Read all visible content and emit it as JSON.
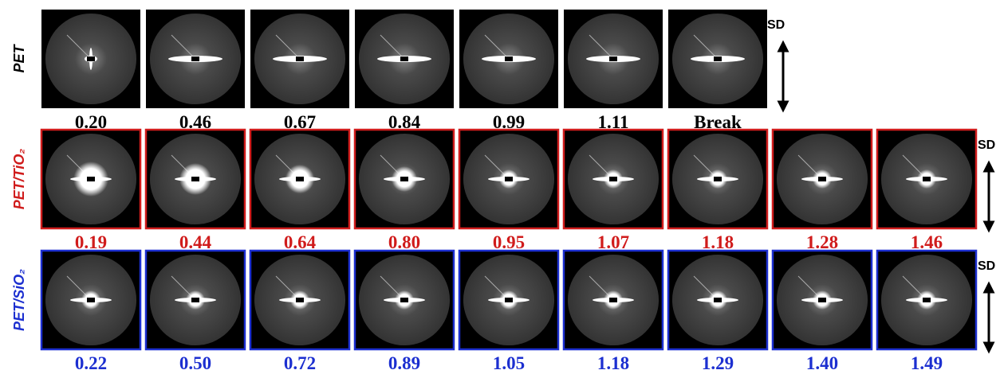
{
  "rows": [
    {
      "label": "PET",
      "color": "#000000",
      "values": [
        "0.20",
        "0.46",
        "0.67",
        "0.84",
        "0.99",
        "1.11",
        "Break"
      ]
    },
    {
      "label": "PET/TiO₂",
      "color": "#d01c1c",
      "values": [
        "0.19",
        "0.44",
        "0.64",
        "0.80",
        "0.95",
        "1.07",
        "1.18",
        "1.28",
        "1.46"
      ]
    },
    {
      "label": "PET/SiO₂",
      "color": "#1c2fd0",
      "values": [
        "0.22",
        "0.50",
        "0.72",
        "0.89",
        "1.05",
        "1.18",
        "1.29",
        "1.40",
        "1.49"
      ]
    }
  ],
  "direction_label": "SD"
}
